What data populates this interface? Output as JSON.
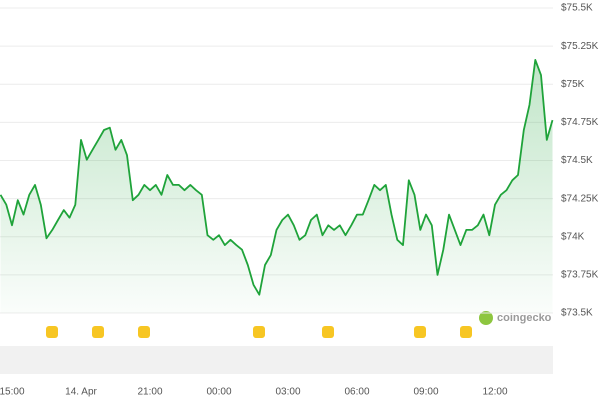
{
  "chart_data": {
    "type": "line",
    "watermark": "coingecko",
    "categories": [
      null,
      null,
      "15:00",
      null,
      null,
      null,
      null,
      null,
      null,
      null,
      null,
      null,
      null,
      null,
      "14. Apr",
      null,
      null,
      null,
      null,
      null,
      null,
      null,
      null,
      null,
      null,
      null,
      "21:00",
      null,
      null,
      null,
      null,
      null,
      null,
      null,
      null,
      null,
      null,
      null,
      "00:00",
      null,
      null,
      null,
      null,
      null,
      null,
      null,
      null,
      null,
      null,
      null,
      "03:00",
      null,
      null,
      null,
      null,
      null,
      null,
      null,
      null,
      null,
      null,
      null,
      "06:00",
      null,
      null,
      null,
      null,
      null,
      null,
      null,
      null,
      null,
      null,
      null,
      "09:00",
      null,
      null,
      null,
      null,
      null,
      null,
      null,
      null,
      null,
      null,
      null,
      "12:00",
      null,
      null,
      null,
      null,
      null,
      null,
      null,
      null,
      null,
      null
    ],
    "series": [
      {
        "color": "#1fa33a",
        "values": [
          74275,
          74210,
          74075,
          74240,
          74145,
          74275,
          74340,
          74210,
          73990,
          74045,
          74110,
          74175,
          74125,
          74210,
          74635,
          74505,
          74570,
          74635,
          74700,
          74715,
          74570,
          74635,
          74535,
          74240,
          74275,
          74340,
          74305,
          74340,
          74275,
          74405,
          74340,
          74340,
          74305,
          74340,
          74305,
          74275,
          74010,
          73980,
          74010,
          73945,
          73980,
          73945,
          73915,
          73815,
          73685,
          73620,
          73815,
          73880,
          74045,
          74110,
          74145,
          74075,
          73980,
          74010,
          74110,
          74145,
          74010,
          74075,
          74045,
          74075,
          74010,
          74075,
          74145,
          74145,
          74240,
          74340,
          74305,
          74340,
          74145,
          73980,
          73945,
          74370,
          74275,
          74045,
          74145,
          74075,
          73750,
          73915,
          74145,
          74045,
          73945,
          74045,
          74045,
          74075,
          74145,
          74010,
          74210,
          74275,
          74305,
          74370,
          74405,
          74700,
          74865,
          75160,
          75060,
          74635,
          74765
        ]
      }
    ],
    "ylim": [
      73500,
      75500
    ],
    "yticks": [
      {
        "value": 73500,
        "label": "$73.5K"
      },
      {
        "value": 73750,
        "label": "$73.75K"
      },
      {
        "value": 74000,
        "label": "$74K"
      },
      {
        "value": 74250,
        "label": "$74.25K"
      },
      {
        "value": 74500,
        "label": "$74.5K"
      },
      {
        "value": 74750,
        "label": "$74.75K"
      },
      {
        "value": 75000,
        "label": "$75K"
      },
      {
        "value": 75250,
        "label": "$75.25K"
      },
      {
        "value": 75500,
        "label": "$75.5K"
      }
    ],
    "grid": true
  }
}
